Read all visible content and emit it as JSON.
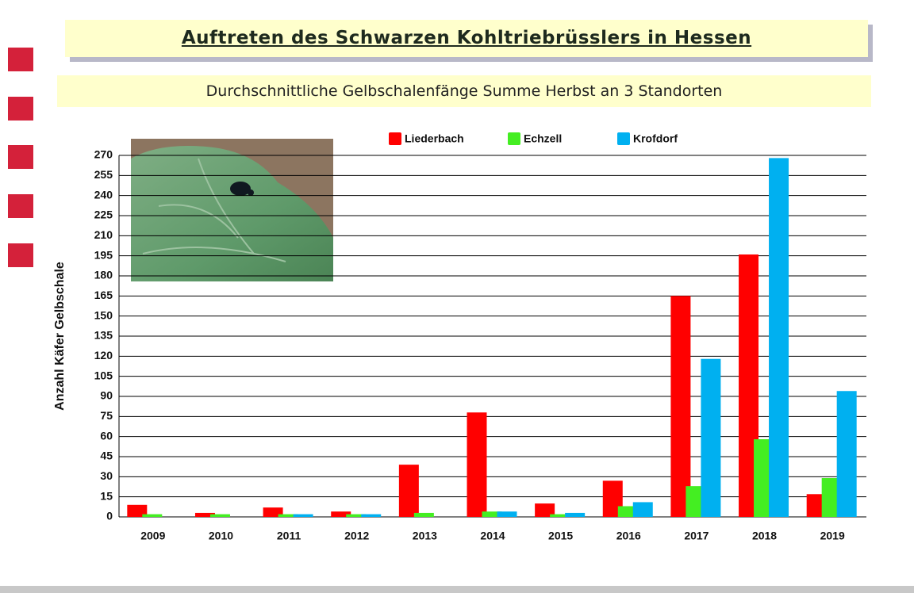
{
  "chart_data": {
    "type": "bar",
    "title": "Auftreten des Schwarzen Kohltriebrüsslers in Hessen",
    "subtitle": "Durchschnittliche Gelbschalenfänge Summe Herbst an 3 Standorten",
    "y_label": "Anzahl Käfer Gelbschale",
    "categories": [
      "2009",
      "2010",
      "2011",
      "2012",
      "2013",
      "2014",
      "2015",
      "2016",
      "2017",
      "2018",
      "2019"
    ],
    "series": [
      {
        "name": "Liederbach",
        "color": "#ff0000",
        "values": [
          9,
          3,
          7,
          4,
          39,
          78,
          10,
          27,
          165,
          196,
          17
        ]
      },
      {
        "name": "Echzell",
        "color": "#44ee22",
        "values": [
          2,
          2,
          2,
          2,
          3,
          4,
          2,
          8,
          23,
          58,
          29
        ]
      },
      {
        "name": "Krofdorf",
        "color": "#00b0f0",
        "values": [
          0,
          0,
          2,
          2,
          0,
          4,
          3,
          11,
          118,
          268,
          94
        ]
      }
    ],
    "ylim": [
      0,
      270
    ],
    "yticks": [
      0,
      15,
      30,
      45,
      60,
      75,
      90,
      105,
      120,
      135,
      150,
      165,
      180,
      195,
      210,
      225,
      240,
      255,
      270
    ],
    "grid": true,
    "legend": "top"
  }
}
